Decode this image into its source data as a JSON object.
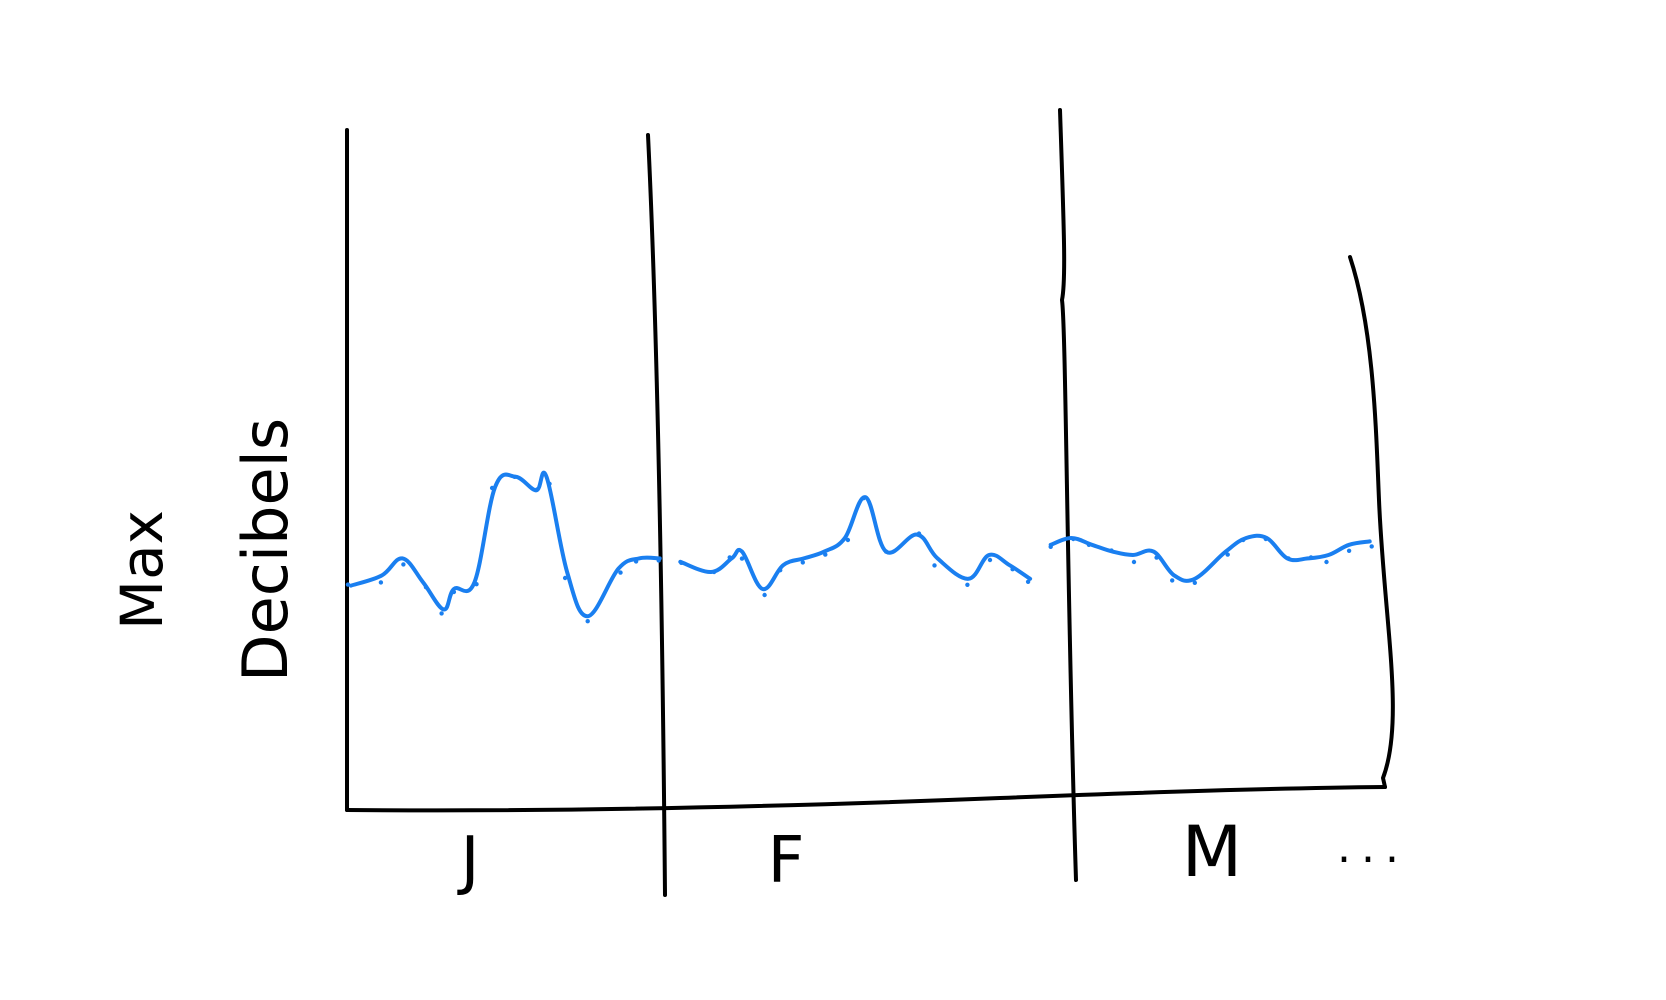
{
  "chart_data": {
    "type": "line",
    "style": "hand-drawn sketch",
    "title": "",
    "xlabel": "",
    "ylabel": [
      "Max",
      "Decibels"
    ],
    "categories": [
      "J",
      "F",
      "M"
    ],
    "continuation_mark": "...",
    "grid": false,
    "legend": "none",
    "ylim": [
      0,
      100
    ],
    "colors": {
      "axes": "#000000",
      "series": "#1a7ff0"
    },
    "series": [
      {
        "name": "",
        "x": [
          0.0,
          0.03,
          0.05,
          0.07,
          0.09,
          0.1,
          0.12,
          0.14,
          0.16,
          0.18,
          0.19,
          0.21,
          0.23,
          0.26,
          0.28,
          0.3,
          0.32,
          0.35,
          0.37,
          0.38,
          0.4,
          0.42,
          0.44,
          0.46,
          0.48,
          0.5,
          0.52,
          0.55,
          0.57,
          0.6,
          0.62,
          0.64,
          0.66,
          0.68,
          0.7,
          0.72,
          0.74,
          0.76,
          0.78,
          0.8,
          0.82,
          0.85,
          0.87,
          0.89,
          0.91,
          0.93,
          0.95,
          0.97,
          0.99
        ],
        "values": [
          33.0,
          34.5,
          37.0,
          33.5,
          29.5,
          32.5,
          33.5,
          47.5,
          49.0,
          47.0,
          49.0,
          35.0,
          28.5,
          35.5,
          37.0,
          37.0,
          36.5,
          35.0,
          37.0,
          38.0,
          32.5,
          36.0,
          37.0,
          38.0,
          40.0,
          46.0,
          38.0,
          40.5,
          37.0,
          34.0,
          37.5,
          36.0,
          34.0,
          39.0,
          40.0,
          39.0,
          38.0,
          37.5,
          38.0,
          34.5,
          34.0,
          38.0,
          40.0,
          40.0,
          37.0,
          37.0,
          37.5,
          39.0,
          39.5
        ],
        "segments": [
          [
            0,
            15
          ],
          [
            16,
            32
          ],
          [
            33,
            48
          ]
        ]
      }
    ]
  }
}
